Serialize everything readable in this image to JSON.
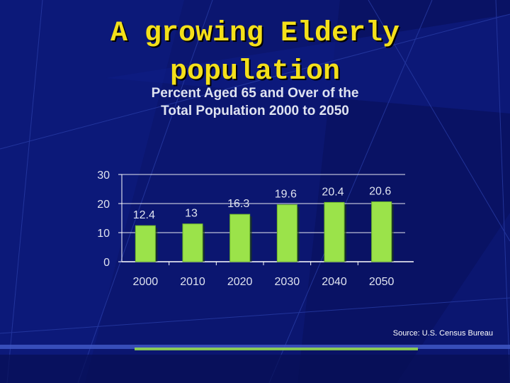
{
  "slide": {
    "title_line1": "A growing Elderly",
    "title_line2": "population",
    "source": "Source: U.S. Census Bureau"
  },
  "colors": {
    "background": "#0b1670",
    "title": "#f4e01a",
    "bar": "#9be34a",
    "axis": "#ffffff",
    "gridline": "#ffffff",
    "text": "#dfe3f0"
  },
  "chart_data": {
    "type": "bar",
    "title_line1": "Percent Aged 65 and Over of the",
    "title_line2": "Total Population  2000 to 2050",
    "categories": [
      "2000",
      "2010",
      "2020",
      "2030",
      "2040",
      "2050"
    ],
    "values": [
      12.4,
      13,
      16.3,
      19.6,
      20.4,
      20.6
    ],
    "value_labels": [
      "12.4",
      "13",
      "16.3",
      "19.6",
      "20.4",
      "20.6"
    ],
    "ylim": [
      0,
      30
    ],
    "yticks": [
      "0",
      "10",
      "20",
      "30"
    ],
    "xlabel": "",
    "ylabel": "",
    "grid": true
  }
}
